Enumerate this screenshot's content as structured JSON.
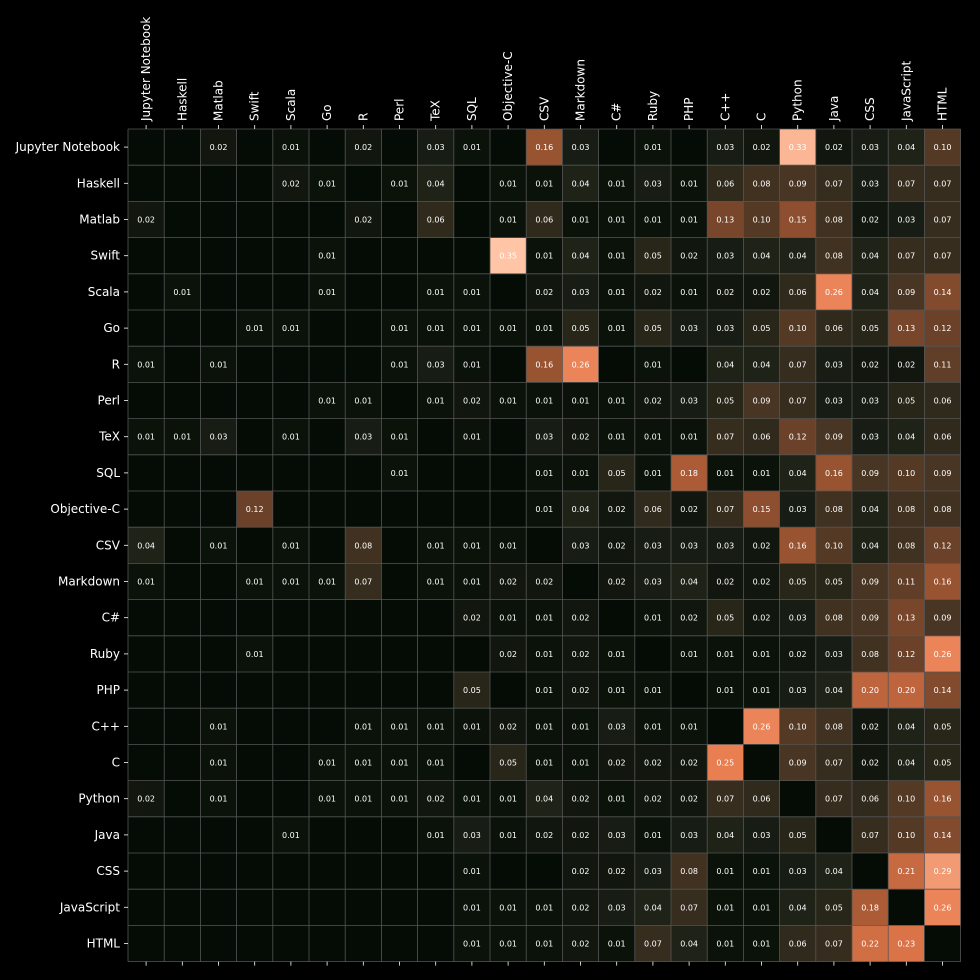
{
  "chart_data": {
    "type": "heatmap",
    "title": "",
    "xlabel": "",
    "ylabel": "",
    "x_tick_position": "top",
    "grid": true,
    "colors": {
      "background": "#000000",
      "empty_cell": "#040c05",
      "high_cell": "#ffc5a6",
      "grid": "#555555",
      "text": "#ffffff"
    },
    "columns": [
      "Jupyter Notebook",
      "Haskell",
      "Matlab",
      "Swift",
      "Scala",
      "Go",
      "R",
      "Perl",
      "TeX",
      "SQL",
      "Objective-C",
      "CSV",
      "Markdown",
      "C#",
      "Ruby",
      "PHP",
      "C++",
      "C",
      "Python",
      "Java",
      "CSS",
      "JavaScript",
      "HTML"
    ],
    "rows": [
      "Jupyter Notebook",
      "Haskell",
      "Matlab",
      "Swift",
      "Scala",
      "Go",
      "R",
      "Perl",
      "TeX",
      "SQL",
      "Objective-C",
      "CSV",
      "Markdown",
      "C#",
      "Ruby",
      "PHP",
      "C++",
      "C",
      "Python",
      "Java",
      "CSS",
      "JavaScript",
      "HTML"
    ],
    "values": [
      [
        null,
        null,
        0.02,
        null,
        0.01,
        null,
        0.02,
        null,
        0.03,
        0.01,
        null,
        0.16,
        0.03,
        null,
        0.01,
        null,
        0.03,
        0.02,
        0.33,
        0.02,
        0.03,
        0.04,
        0.1
      ],
      [
        null,
        null,
        null,
        null,
        0.02,
        0.01,
        null,
        0.01,
        0.04,
        null,
        0.01,
        0.01,
        0.04,
        0.01,
        0.03,
        0.01,
        0.06,
        0.08,
        0.09,
        0.07,
        0.03,
        0.07,
        0.07
      ],
      [
        0.02,
        null,
        null,
        null,
        null,
        null,
        0.02,
        null,
        0.06,
        null,
        0.01,
        0.06,
        0.01,
        0.01,
        0.01,
        0.01,
        0.13,
        0.1,
        0.15,
        0.08,
        0.02,
        0.03,
        0.07
      ],
      [
        null,
        null,
        null,
        null,
        null,
        0.01,
        null,
        null,
        null,
        null,
        0.35,
        0.01,
        0.04,
        0.01,
        0.05,
        0.02,
        0.03,
        0.04,
        0.04,
        0.08,
        0.04,
        0.07,
        0.07
      ],
      [
        null,
        0.01,
        null,
        null,
        null,
        0.01,
        null,
        null,
        0.01,
        0.01,
        null,
        0.02,
        0.03,
        0.01,
        0.02,
        0.01,
        0.02,
        0.02,
        0.06,
        0.26,
        0.04,
        0.09,
        0.14
      ],
      [
        null,
        null,
        null,
        0.01,
        0.01,
        null,
        null,
        0.01,
        0.01,
        0.01,
        0.01,
        0.01,
        0.05,
        0.01,
        0.05,
        0.03,
        0.03,
        0.05,
        0.1,
        0.06,
        0.05,
        0.13,
        0.12
      ],
      [
        0.01,
        null,
        0.01,
        null,
        null,
        null,
        null,
        0.01,
        0.03,
        0.01,
        null,
        0.16,
        0.26,
        null,
        0.01,
        null,
        0.04,
        0.04,
        0.07,
        0.03,
        0.02,
        0.02,
        0.11
      ],
      [
        null,
        null,
        null,
        null,
        null,
        0.01,
        0.01,
        null,
        0.01,
        0.02,
        0.01,
        0.01,
        0.01,
        0.01,
        0.02,
        0.03,
        0.05,
        0.09,
        0.07,
        0.03,
        0.03,
        0.05,
        0.06
      ],
      [
        0.01,
        0.01,
        0.03,
        null,
        0.01,
        null,
        0.03,
        0.01,
        null,
        0.01,
        null,
        0.03,
        0.02,
        0.01,
        0.01,
        0.01,
        0.07,
        0.06,
        0.12,
        0.09,
        0.03,
        0.04,
        0.06
      ],
      [
        null,
        null,
        null,
        null,
        null,
        null,
        null,
        0.01,
        null,
        null,
        null,
        0.01,
        0.01,
        0.05,
        0.01,
        0.18,
        0.01,
        0.01,
        0.04,
        0.16,
        0.09,
        0.1,
        0.09
      ],
      [
        null,
        null,
        null,
        0.12,
        null,
        null,
        null,
        null,
        null,
        null,
        null,
        0.01,
        0.04,
        0.02,
        0.06,
        0.02,
        0.07,
        0.15,
        0.03,
        0.08,
        0.04,
        0.08,
        0.08
      ],
      [
        0.04,
        null,
        0.01,
        null,
        0.01,
        null,
        0.08,
        null,
        0.01,
        0.01,
        0.01,
        null,
        0.03,
        0.02,
        0.03,
        0.03,
        0.03,
        0.02,
        0.16,
        0.1,
        0.04,
        0.08,
        0.12
      ],
      [
        0.01,
        null,
        null,
        0.01,
        0.01,
        0.01,
        0.07,
        null,
        0.01,
        0.01,
        0.02,
        0.02,
        null,
        0.02,
        0.03,
        0.04,
        0.02,
        0.02,
        0.05,
        0.05,
        0.09,
        0.11,
        0.16
      ],
      [
        null,
        null,
        null,
        null,
        null,
        null,
        null,
        null,
        null,
        0.02,
        0.01,
        0.01,
        0.02,
        null,
        0.01,
        0.02,
        0.05,
        0.02,
        0.03,
        0.08,
        0.09,
        0.13,
        0.09
      ],
      [
        null,
        null,
        null,
        0.01,
        null,
        null,
        null,
        null,
        null,
        null,
        0.02,
        0.01,
        0.02,
        0.01,
        null,
        0.01,
        0.01,
        0.01,
        0.02,
        0.03,
        0.08,
        0.12,
        0.26
      ],
      [
        null,
        null,
        null,
        null,
        null,
        null,
        null,
        null,
        null,
        0.05,
        null,
        0.01,
        0.02,
        0.01,
        0.01,
        null,
        0.01,
        0.01,
        0.03,
        0.04,
        0.2,
        0.2,
        0.14
      ],
      [
        null,
        null,
        0.01,
        null,
        null,
        null,
        0.01,
        0.01,
        0.01,
        0.01,
        0.02,
        0.01,
        0.01,
        0.03,
        0.01,
        0.01,
        null,
        0.26,
        0.1,
        0.08,
        0.02,
        0.04,
        0.05
      ],
      [
        null,
        null,
        0.01,
        null,
        null,
        0.01,
        0.01,
        0.01,
        0.01,
        null,
        0.05,
        0.01,
        0.01,
        0.02,
        0.02,
        0.02,
        0.25,
        null,
        0.09,
        0.07,
        0.02,
        0.04,
        0.05
      ],
      [
        0.02,
        null,
        0.01,
        null,
        null,
        0.01,
        0.01,
        0.01,
        0.02,
        0.01,
        0.01,
        0.04,
        0.02,
        0.01,
        0.02,
        0.02,
        0.07,
        0.06,
        null,
        0.07,
        0.06,
        0.1,
        0.16
      ],
      [
        null,
        null,
        null,
        null,
        0.01,
        null,
        null,
        null,
        0.01,
        0.03,
        0.01,
        0.02,
        0.02,
        0.03,
        0.01,
        0.03,
        0.04,
        0.03,
        0.05,
        null,
        0.07,
        0.1,
        0.14
      ],
      [
        null,
        null,
        null,
        null,
        null,
        null,
        null,
        null,
        null,
        0.01,
        null,
        null,
        0.02,
        0.02,
        0.03,
        0.08,
        0.01,
        0.01,
        0.03,
        0.04,
        null,
        0.21,
        0.29
      ],
      [
        null,
        null,
        null,
        null,
        null,
        null,
        null,
        null,
        null,
        0.01,
        0.01,
        0.01,
        0.02,
        0.03,
        0.04,
        0.07,
        0.01,
        0.01,
        0.04,
        0.05,
        0.18,
        null,
        0.26
      ],
      [
        null,
        null,
        null,
        null,
        null,
        null,
        null,
        null,
        null,
        0.01,
        0.01,
        0.01,
        0.02,
        0.01,
        0.07,
        0.04,
        0.01,
        0.01,
        0.06,
        0.07,
        0.22,
        0.23,
        null
      ]
    ]
  }
}
